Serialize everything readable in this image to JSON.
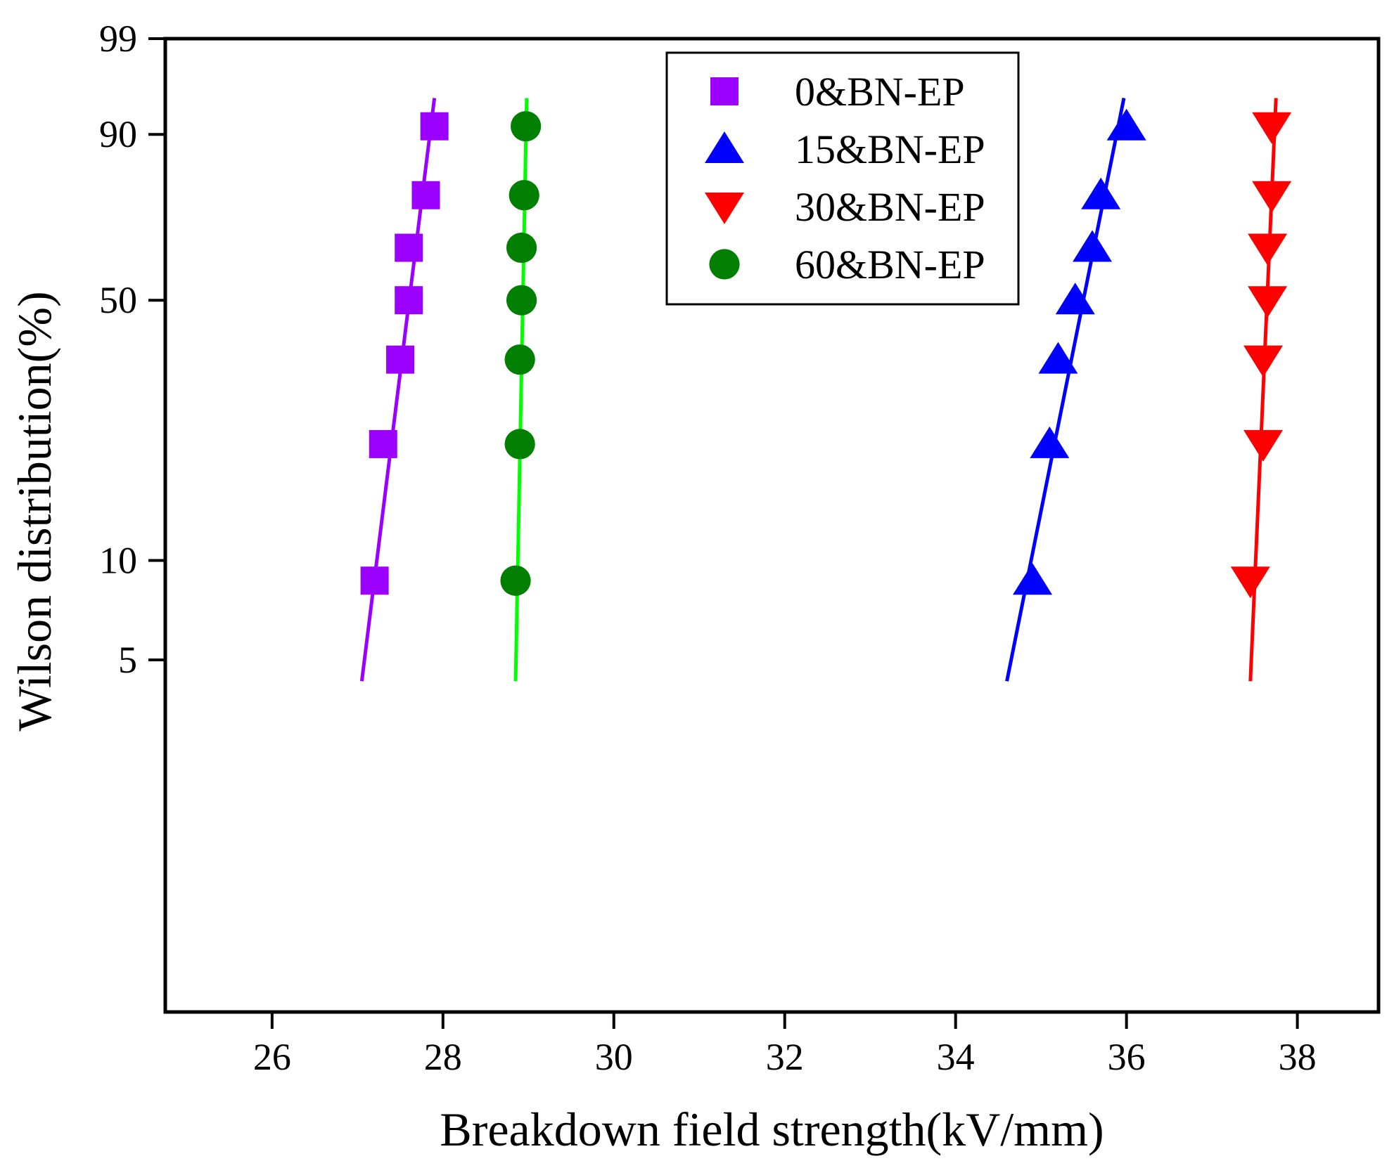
{
  "chart_data": {
    "type": "scatter",
    "title": "",
    "xlabel": "Breakdown field strength(kV/mm)",
    "ylabel": "Wilson distribution(%)",
    "xlim": [
      24.75,
      38.95
    ],
    "xticks": [
      26,
      28,
      30,
      32,
      34,
      36,
      38
    ],
    "xtick_labels": [
      "26",
      "28",
      "30",
      "32",
      "34",
      "36",
      "38"
    ],
    "yscale": "weibull-probability",
    "ylim": [
      0.4,
      99
    ],
    "yticks": [
      5,
      10,
      50,
      90,
      99
    ],
    "ytick_labels": [
      "5",
      "10",
      "50",
      "90",
      "99"
    ],
    "legend_position": "top-center",
    "series": [
      {
        "name": "0&BN-EP",
        "marker": "square",
        "marker_color": "#9b00ff",
        "line_color": "#9b00ff",
        "x": [
          27.2,
          27.3,
          27.5,
          27.6,
          27.6,
          27.8,
          27.9
        ],
        "y": [
          8.7,
          21.7,
          36.3,
          50.0,
          63.7,
          77.3,
          91.3
        ],
        "fit": {
          "x": [
            27.05,
            27.9
          ],
          "y": [
            4.3,
            95
          ]
        }
      },
      {
        "name": "15&BN-EP",
        "marker": "triangle-up",
        "marker_color": "#0000ff",
        "line_color": "#0000ff",
        "x": [
          34.9,
          35.1,
          35.2,
          35.4,
          35.6,
          35.7,
          36.0
        ],
        "y": [
          8.7,
          21.7,
          36.3,
          50.0,
          63.7,
          77.3,
          91.3
        ],
        "fit": {
          "x": [
            34.6,
            35.97
          ],
          "y": [
            4.3,
            95
          ]
        }
      },
      {
        "name": "30&BN-EP",
        "marker": "triangle-down",
        "marker_color": "#ff0000",
        "line_color": "#ff0000",
        "x": [
          37.45,
          37.6,
          37.6,
          37.65,
          37.65,
          37.7,
          37.7
        ],
        "y": [
          8.7,
          21.7,
          36.3,
          50.0,
          63.7,
          77.3,
          91.3
        ],
        "fit": {
          "x": [
            37.45,
            37.75
          ],
          "y": [
            4.3,
            95
          ]
        }
      },
      {
        "name": "60&BN-EP",
        "marker": "circle",
        "marker_color": "#007f00",
        "line_color": "#00ff00",
        "x": [
          28.85,
          28.9,
          28.9,
          28.92,
          28.92,
          28.95,
          28.97
        ],
        "y": [
          8.7,
          21.7,
          36.3,
          50.0,
          63.7,
          77.3,
          91.3
        ],
        "fit": {
          "x": [
            28.85,
            28.98
          ],
          "y": [
            4.3,
            95
          ]
        }
      }
    ]
  }
}
